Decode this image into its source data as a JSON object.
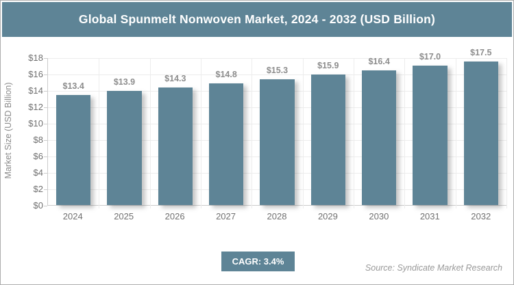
{
  "header": {
    "title": "Global Spunmelt Nonwoven Market, 2024 - 2032 (USD Billion)"
  },
  "chart_data": {
    "type": "bar",
    "title": "Global Spunmelt Nonwoven Market, 2024 - 2032 (USD Billion)",
    "categories": [
      "2024",
      "2025",
      "2026",
      "2027",
      "2028",
      "2029",
      "2030",
      "2031",
      "2032"
    ],
    "values": [
      13.4,
      13.9,
      14.3,
      14.8,
      15.3,
      15.9,
      16.4,
      17.0,
      17.5
    ],
    "bar_labels": [
      "$13.4",
      "$13.9",
      "$14.3",
      "$14.8",
      "$15.3",
      "$15.9",
      "$16.4",
      "$17.0",
      "$17.5"
    ],
    "xlabel": "",
    "ylabel": "Market Size (USD Billion)",
    "ylim": [
      0,
      18
    ],
    "ytick_values": [
      0,
      2,
      4,
      6,
      8,
      10,
      12,
      14,
      16,
      18
    ],
    "ytick_labels": [
      "$0",
      "$2",
      "$4",
      "$6",
      "$8",
      "$10",
      "$12",
      "$14",
      "$16",
      "$18"
    ],
    "grid": true,
    "legend": false,
    "bar_color": "#5e8496"
  },
  "footer": {
    "cagr_label": "CAGR: 3.4%",
    "source": "Source: Syndicate Market Research"
  },
  "colors": {
    "accent": "#5e8496",
    "grid": "#ececec",
    "axis_line": "#cccccc",
    "tick_text": "#6f6f6f",
    "bar_label_text": "#8d8d8d"
  }
}
